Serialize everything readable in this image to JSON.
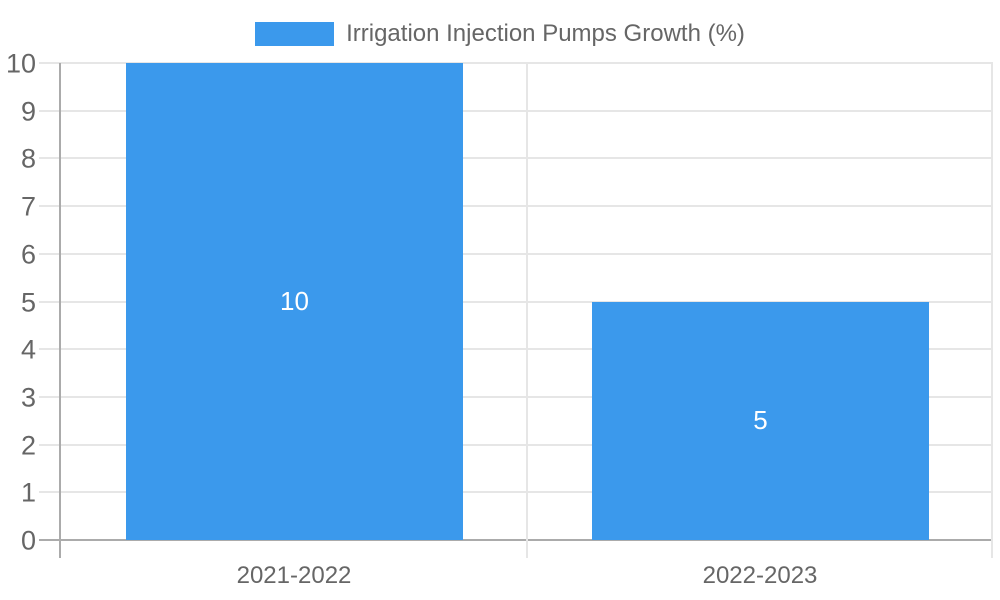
{
  "chart_data": {
    "type": "bar",
    "title": "Irrigation Injection Pumps Growth (%)",
    "categories": [
      "2021-2022",
      "2022-2023"
    ],
    "values": [
      10,
      5
    ],
    "data_labels": [
      "10",
      "5"
    ],
    "xlabel": "",
    "ylabel": "",
    "ylim": [
      0,
      10
    ],
    "yticks": [
      0,
      1,
      2,
      3,
      4,
      5,
      6,
      7,
      8,
      9,
      10
    ],
    "grid": true,
    "legend_position": "top",
    "colors": {
      "bar": "#3B99EC",
      "grid": "#E6E6E6",
      "axis": "#ABABAB",
      "text": "#666666",
      "data_label": "#FFFFFF",
      "background": "#FFFFFF"
    }
  }
}
